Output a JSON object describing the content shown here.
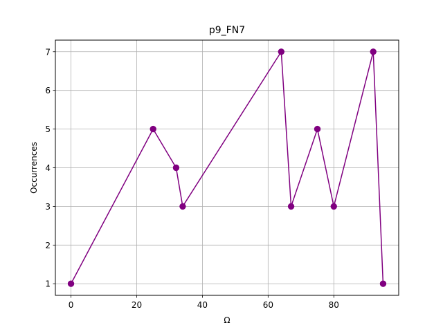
{
  "chart_data": {
    "type": "line",
    "title": "p9_FN7",
    "xlabel": "Ω",
    "ylabel": "Occurrences",
    "xlim": [
      -4.75,
      99.75
    ],
    "ylim": [
      0.7,
      7.3
    ],
    "xticks": [
      0,
      20,
      40,
      60,
      80
    ],
    "yticks": [
      1,
      2,
      3,
      4,
      5,
      6,
      7
    ],
    "grid": true,
    "series": [
      {
        "color": "#800080",
        "marker": "circle",
        "x": [
          0,
          25,
          32,
          34,
          64,
          67,
          75,
          80,
          92,
          95
        ],
        "y": [
          1,
          5,
          4,
          3,
          7,
          3,
          5,
          3,
          7,
          1
        ]
      }
    ]
  }
}
